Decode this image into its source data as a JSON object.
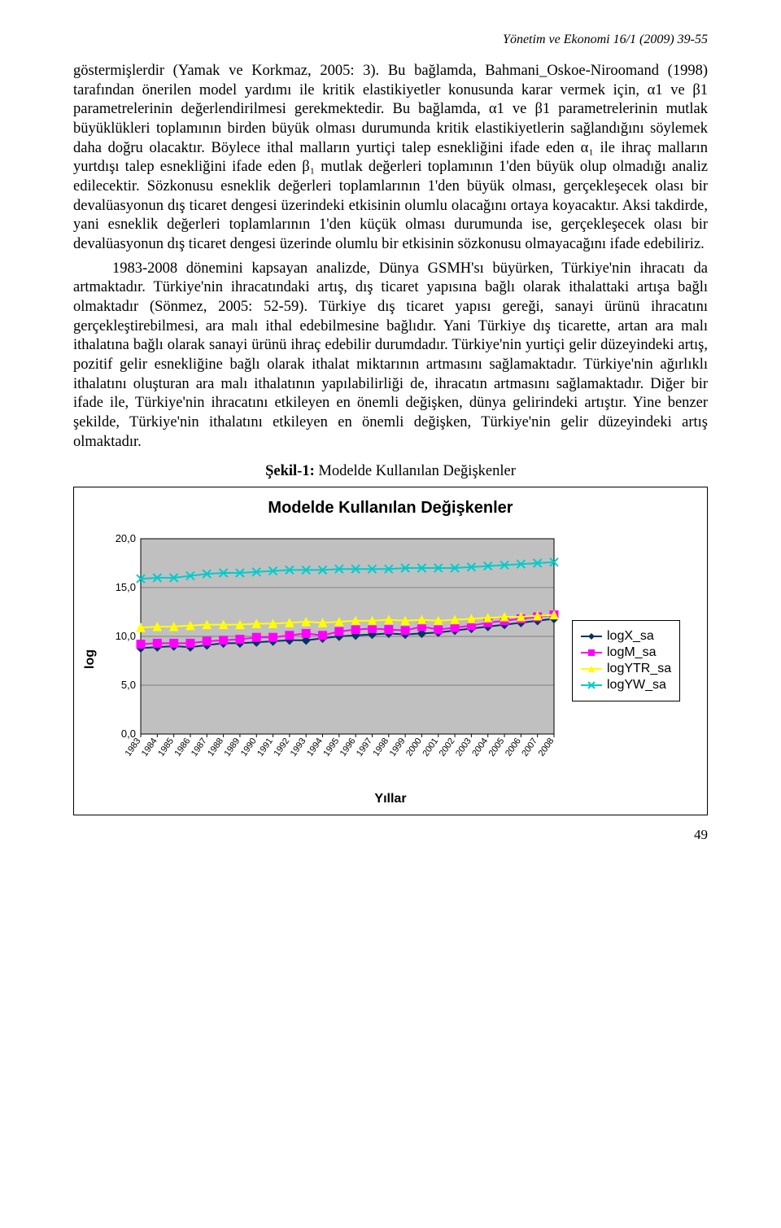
{
  "header": {
    "journal_line": "Yönetim ve Ekonomi 16/1 (2009) 39-55"
  },
  "paragraphs": {
    "p1": "göstermişlerdir (Yamak ve Korkmaz, 2005: 3). Bu bağlamda, Bahmani_Oskoe-Niroomand (1998) tarafından önerilen model yardımı ile kritik elastikiyetler konusunda karar vermek için, α1 ve  β1 parametrelerinin değerlendirilmesi gerekmektedir. Bu bağlamda, α1 ve  β1 parametrelerinin mutlak büyüklükleri toplamının birden büyük olması durumunda kritik elastikiyetlerin sağlandığını söylemek daha doğru olacaktır. Böylece ithal malların yurtiçi talep esnekliğini ifade eden α₁ ile ihraç malların yurtdışı talep esnekliğini ifade eden β₁ mutlak değerleri toplamının 1'den büyük olup olmadığı analiz edilecektir. Sözkonusu esneklik değerleri toplamlarının 1'den büyük olması, gerçekleşecek olası bir devalüasyonun dış ticaret dengesi üzerindeki etkisinin olumlu olacağını ortaya koyacaktır. Aksi takdirde, yani esneklik değerleri toplamlarının 1'den küçük olması durumunda ise, gerçekleşecek olası bir devalüasyonun dış ticaret dengesi üzerinde olumlu bir etkisinin sözkonusu olmayacağını ifade edebiliriz.",
    "p2": "1983-2008 dönemini kapsayan analizde, Dünya GSMH'sı büyürken, Türkiye'nin ihracatı da artmaktadır. Türkiye'nin ihracatındaki artış, dış ticaret yapısına bağlı olarak ithalattaki artışa bağlı olmaktadır (Sönmez, 2005: 52-59). Türkiye dış ticaret yapısı gereği, sanayi ürünü ihracatını gerçekleştirebilmesi, ara malı ithal edebilmesine bağlıdır. Yani Türkiye dış ticarette, artan ara malı ithalatına bağlı olarak sanayi ürünü ihraç edebilir durumdadır. Türkiye'nin yurtiçi gelir düzeyindeki artış, pozitif gelir esnekliğine bağlı olarak ithalat miktarının artmasını sağlamaktadır. Türkiye'nin ağırlıklı ithalatını oluşturan ara malı ithalatının yapılabilirliği de, ihracatın artmasını sağlamaktadır. Diğer bir ifade ile, Türkiye'nin ihracatını etkileyen en önemli değişken, dünya gelirindeki artıştır. Yine benzer şekilde, Türkiye'nin ithalatını etkileyen en önemli değişken, Türkiye'nin gelir düzeyindeki artış olmaktadır."
  },
  "figure": {
    "caption_bold": "Şekil-1:",
    "caption_rest": " Modelde Kullanılan Değişkenler",
    "chart": {
      "type": "line",
      "title": "Modelde Kullanılan Değişkenler",
      "y_label": "log",
      "x_label": "Yıllar",
      "ylim": [
        0,
        20
      ],
      "ytick_step": 5,
      "ytick_labels": [
        "0,0",
        "5,0",
        "10,0",
        "15,0",
        "20,0"
      ],
      "years": [
        "1983",
        "1984",
        "1985",
        "1986",
        "1987",
        "1988",
        "1989",
        "1990",
        "1991",
        "1992",
        "1993",
        "1994",
        "1995",
        "1996",
        "1997",
        "1998",
        "1999",
        "2000",
        "2001",
        "2002",
        "2003",
        "2004",
        "2005",
        "2006",
        "2007",
        "2008"
      ],
      "series": [
        {
          "name": "logX_sa",
          "color": "#003366",
          "marker": "diamond",
          "values": [
            8.8,
            8.9,
            9.0,
            8.9,
            9.1,
            9.3,
            9.3,
            9.4,
            9.5,
            9.6,
            9.6,
            9.8,
            10.0,
            10.1,
            10.2,
            10.3,
            10.2,
            10.3,
            10.4,
            10.6,
            10.8,
            11.0,
            11.2,
            11.4,
            11.6,
            11.8
          ]
        },
        {
          "name": "logM_sa",
          "color": "#ff00ff",
          "marker": "square",
          "values": [
            9.2,
            9.3,
            9.3,
            9.3,
            9.5,
            9.6,
            9.7,
            9.9,
            9.9,
            10.1,
            10.3,
            10.1,
            10.5,
            10.7,
            10.8,
            10.7,
            10.6,
            11.0,
            10.7,
            10.9,
            11.1,
            11.4,
            11.6,
            11.8,
            12.0,
            12.2
          ]
        },
        {
          "name": "logYTR_sa",
          "color": "#ffff00",
          "marker": "triangle",
          "values": [
            10.9,
            11.0,
            11.0,
            11.1,
            11.2,
            11.2,
            11.2,
            11.3,
            11.3,
            11.4,
            11.5,
            11.4,
            11.5,
            11.6,
            11.6,
            11.7,
            11.6,
            11.7,
            11.6,
            11.7,
            11.8,
            11.9,
            12.0,
            12.0,
            12.1,
            12.2
          ]
        },
        {
          "name": "logYW_sa",
          "color": "#00cccc",
          "marker": "x",
          "values": [
            15.9,
            16.0,
            16.0,
            16.2,
            16.4,
            16.5,
            16.5,
            16.6,
            16.7,
            16.8,
            16.8,
            16.8,
            16.9,
            16.9,
            16.9,
            16.9,
            17.0,
            17.0,
            17.0,
            17.0,
            17.1,
            17.2,
            17.3,
            17.4,
            17.5,
            17.6
          ]
        }
      ],
      "plot_background": "#c0c0c0",
      "grid_color": "#808080",
      "axis_font_family": "Arial",
      "tick_fontsize": 13,
      "title_fontsize": 20,
      "line_width": 2,
      "marker_size": 5
    }
  },
  "page_number": "49"
}
